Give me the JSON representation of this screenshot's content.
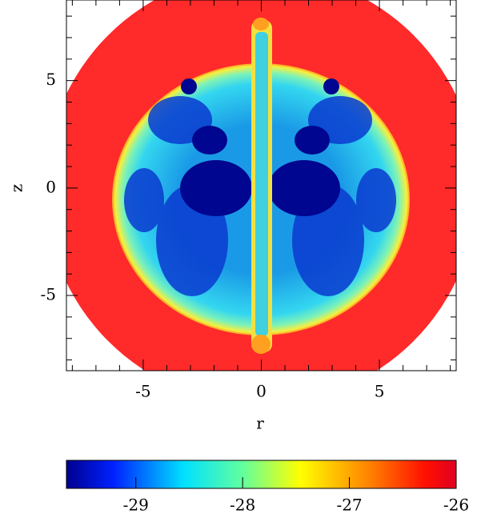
{
  "chart_data": {
    "type": "heatmap",
    "xlabel": "r",
    "ylabel": "z",
    "xlim": [
      -8.25,
      8.25
    ],
    "ylim": [
      -8.5,
      8.75
    ],
    "xticks": [
      -5,
      0,
      5
    ],
    "yticks": [
      -5,
      0,
      5
    ],
    "xminorticks": [
      -8,
      -7,
      -6,
      -4,
      -3,
      -2,
      -1,
      1,
      2,
      3,
      4,
      6,
      7,
      8
    ],
    "yminorticks": [
      -8,
      -7,
      -6,
      -4,
      -3,
      -2,
      -1,
      1,
      2,
      3,
      4,
      6,
      7,
      8
    ],
    "colorbar": {
      "lim": [
        -29.65,
        -26
      ],
      "ticks": [
        -29,
        -28,
        -27,
        -26
      ]
    }
  }
}
